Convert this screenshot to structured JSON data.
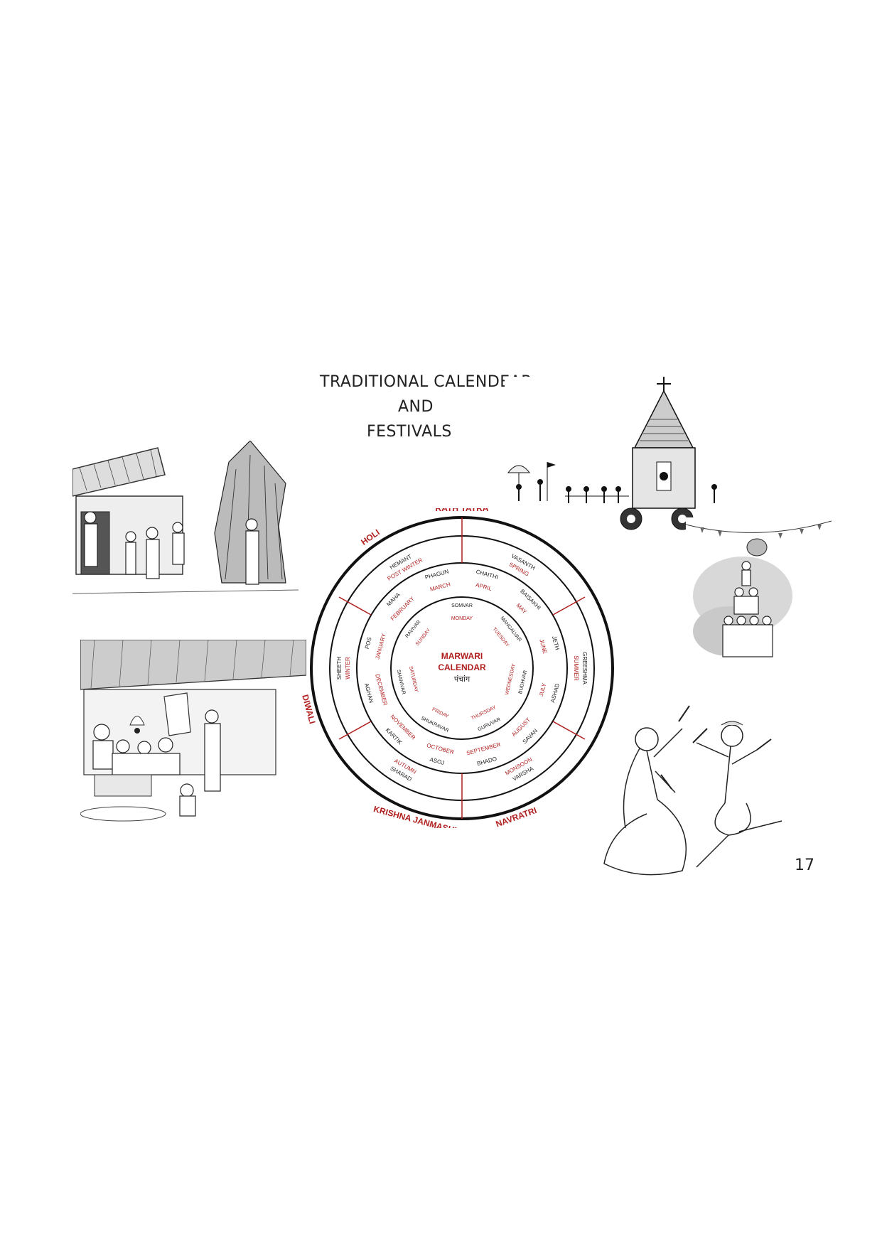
{
  "title": {
    "line1": "TRADITIONAL CALENDEAR",
    "line2": "AND",
    "line3": "FESTIVALS"
  },
  "page_number": "17",
  "calendar": {
    "center": {
      "line1": "MARWARI",
      "line2": "CALENDAR",
      "line3": "पंचांग"
    },
    "festivals": [
      "RATH YATRA",
      "HOLI",
      "DIWALI",
      "NAVRATRI",
      "KRISHNA JANMASHTMI"
    ],
    "seasons": [
      "HEMANT",
      "POST WINTER",
      "VASANTH",
      "SPRING",
      "GREESHMA",
      "SUMMER",
      "VARSHA",
      "MONSOON",
      "SHARAD",
      "AUTUMN",
      "SHEETH",
      "WINTER"
    ],
    "hindi_months": [
      "CHAITHI",
      "BAISAKHI",
      "JETH",
      "ASHAD",
      "SAVAN",
      "BHADO",
      "ASOJ",
      "KARTIK",
      "AGHAN",
      "POS",
      "MAHA",
      "PHAGUN"
    ],
    "english_months": [
      "APRIL",
      "MAY",
      "JUNE",
      "JULY",
      "AUGUST",
      "SEPTEMBER",
      "OCTOBER",
      "NOVEMBER",
      "DECEMBER",
      "JANUARY",
      "FEBRUARY",
      "MARCH"
    ],
    "weekdays_hindi": [
      "SOMVAR",
      "MANGALVAR",
      "BUDHVAR",
      "GURUVAR",
      "SHUKRAVAR",
      "SHANIVAR",
      "RAVIVAR"
    ],
    "weekdays_english": [
      "MONDAY",
      "TUESDAY",
      "WEDNESDAY",
      "THURSDAY",
      "FRIDAY",
      "SATURDAY",
      "SUNDAY"
    ]
  },
  "colors": {
    "red": "#b01e1e",
    "ink": "#1a1a1a"
  }
}
